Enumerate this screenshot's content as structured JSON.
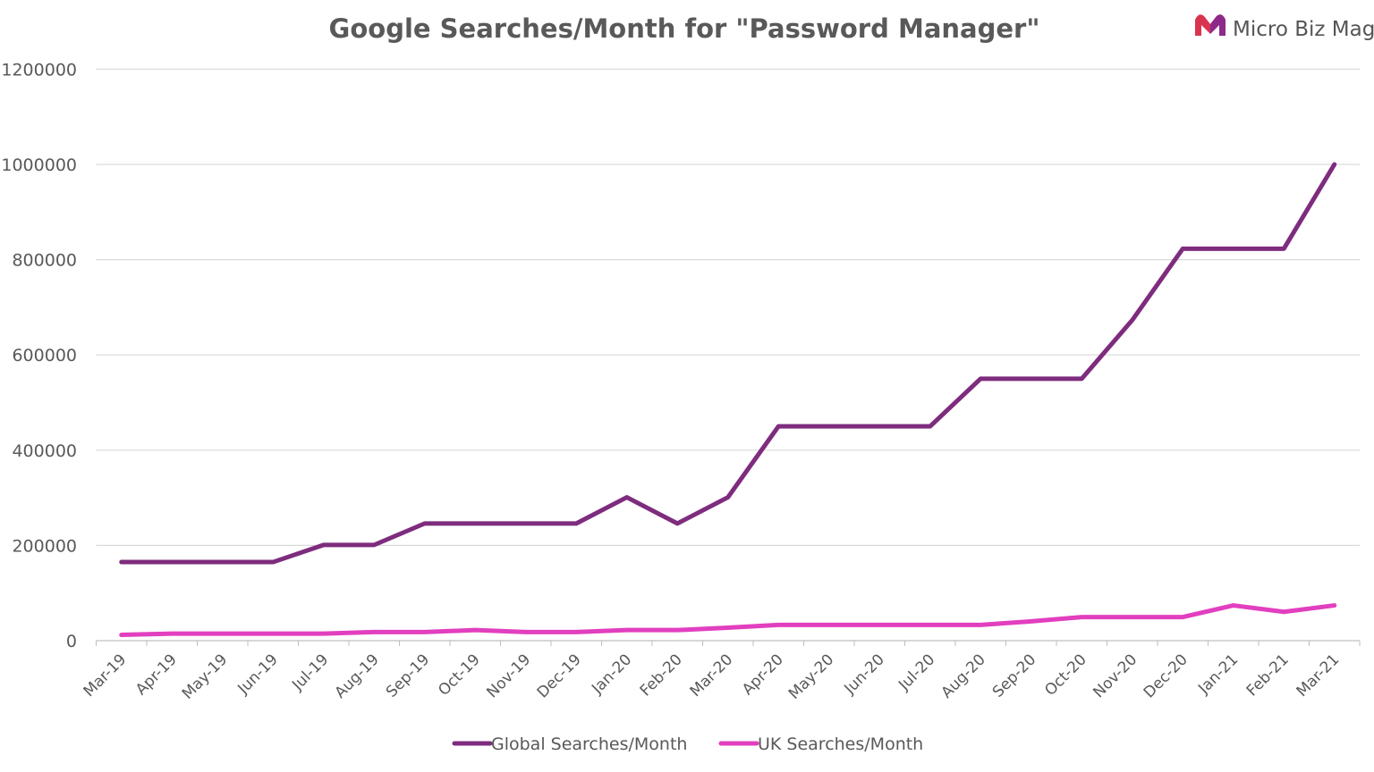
{
  "brand": {
    "name": "Micro Biz Mag",
    "colors": [
      "#D9344F",
      "#8E2A8A"
    ]
  },
  "chart_data": {
    "type": "line",
    "title": "Google Searches/Month for \"Password Manager\"",
    "xlabel": "",
    "ylabel": "",
    "categories": [
      "Mar-19",
      "Apr-19",
      "May-19",
      "Jun-19",
      "Jul-19",
      "Aug-19",
      "Sep-19",
      "Oct-19",
      "Nov-19",
      "Dec-19",
      "Jan-20",
      "Feb-20",
      "Mar-20",
      "Apr-20",
      "May-20",
      "Jun-20",
      "Jul-20",
      "Aug-20",
      "Sep-20",
      "Oct-20",
      "Nov-20",
      "Dec-20",
      "Jan-21",
      "Feb-21",
      "Mar-21"
    ],
    "ylim": [
      0,
      1200000
    ],
    "yticks": [
      0,
      200000,
      400000,
      600000,
      800000,
      1000000,
      1200000
    ],
    "grid": true,
    "legend_position": "bottom",
    "series": [
      {
        "name": "Global Searches/Month",
        "color": "#7E2C7E",
        "values": [
          165000,
          165000,
          165000,
          165000,
          201000,
          201000,
          246000,
          246000,
          246000,
          246000,
          301000,
          246000,
          301000,
          450000,
          450000,
          450000,
          450000,
          550000,
          550000,
          550000,
          673000,
          823000,
          823000,
          823000,
          1000000
        ]
      },
      {
        "name": "UK Searches/Month",
        "color": "#E23FBF",
        "values": [
          12100,
          14800,
          14800,
          14800,
          14800,
          18100,
          18100,
          22200,
          18100,
          18100,
          22200,
          22200,
          27100,
          33100,
          33100,
          33100,
          33100,
          33100,
          40500,
          49500,
          49500,
          49500,
          74000,
          60500,
          74000
        ]
      }
    ]
  }
}
